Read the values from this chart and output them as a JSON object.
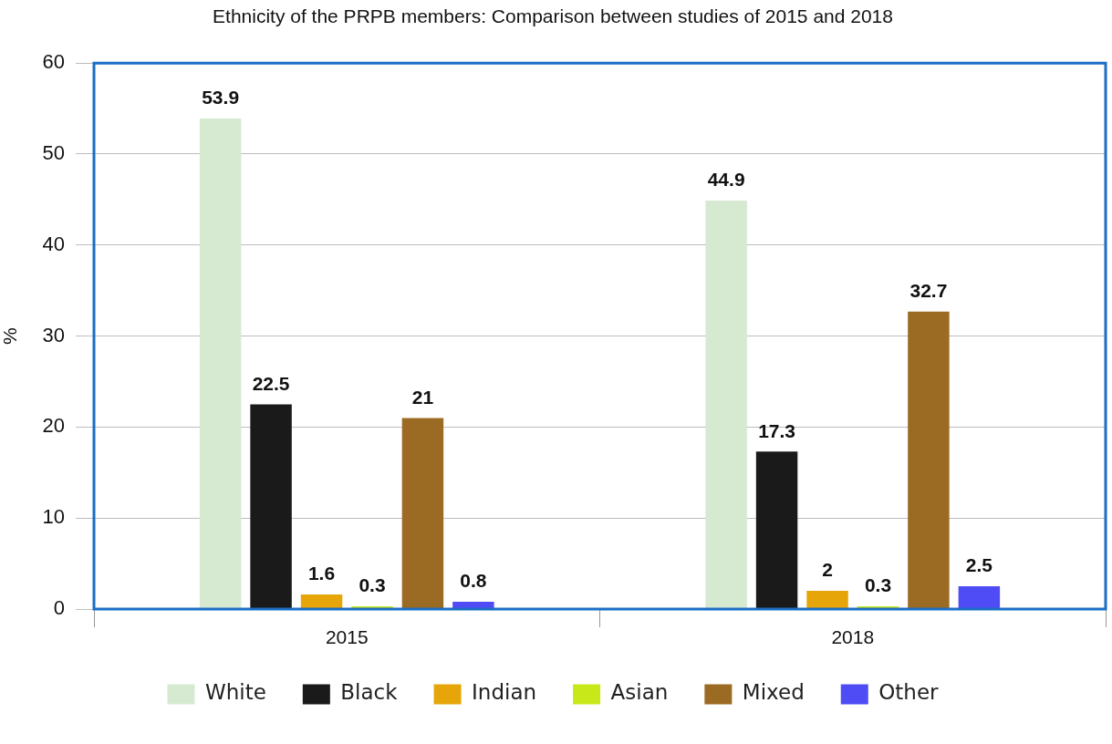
{
  "chart_data": {
    "type": "bar",
    "title": "Ethnicity of the PRPB members: Comparison between studies of 2015 and 2018",
    "ylabel": "%",
    "categories": [
      "2015",
      "2018"
    ],
    "series": [
      {
        "name": "White",
        "color": "#d6ead2",
        "values": [
          53.9,
          44.9
        ]
      },
      {
        "name": "Black",
        "color": "#1b1a1a",
        "values": [
          22.5,
          17.3
        ]
      },
      {
        "name": "Indian",
        "color": "#e6a60a",
        "values": [
          1.6,
          2
        ]
      },
      {
        "name": "Asian",
        "color": "#c9e81a",
        "values": [
          0.3,
          0.3
        ]
      },
      {
        "name": "Mixed",
        "color": "#9b6b24",
        "values": [
          21,
          32.7
        ]
      },
      {
        "name": "Other",
        "color": "#4f4cf5",
        "values": [
          0.8,
          2.5
        ]
      }
    ],
    "ylim": [
      0,
      60
    ],
    "yticks": [
      0,
      10,
      20,
      30,
      40,
      50,
      60
    ],
    "grid": "y",
    "legend": "bottom",
    "data_labels": true
  }
}
